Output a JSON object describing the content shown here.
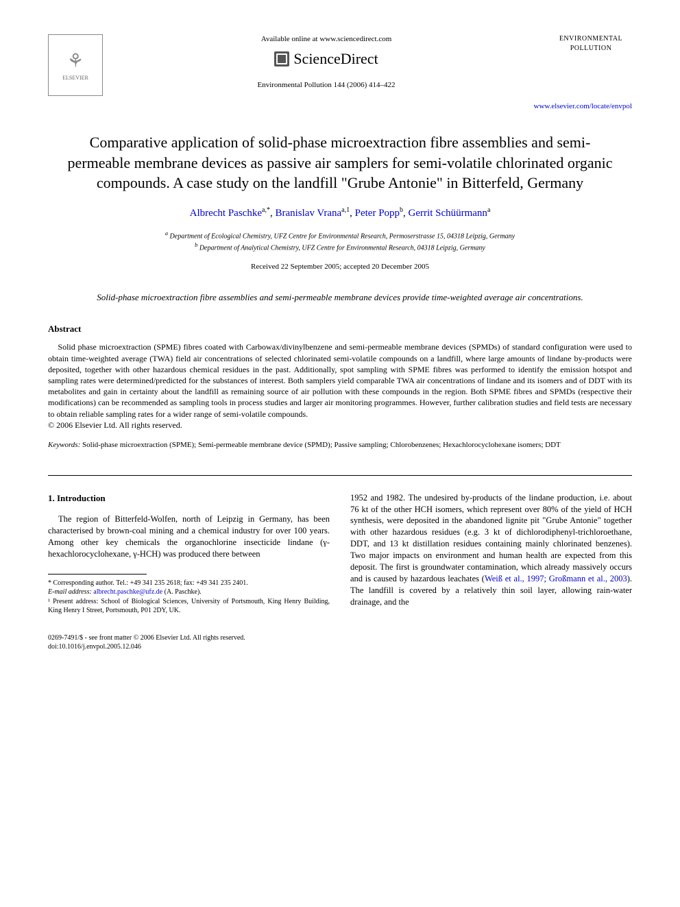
{
  "header": {
    "elsevier_label": "ELSEVIER",
    "available_online": "Available online at www.sciencedirect.com",
    "sciencedirect": "ScienceDirect",
    "journal_reference": "Environmental Pollution 144 (2006) 414–422",
    "journal_logo_line1": "ENVIRONMENTAL",
    "journal_logo_line2": "POLLUTION",
    "locate_url": "www.elsevier.com/locate/envpol"
  },
  "title": "Comparative application of solid-phase microextraction fibre assemblies and semi-permeable membrane devices as passive air samplers for semi-volatile chlorinated organic compounds. A case study on the landfill \"Grube Antonie\" in Bitterfeld, Germany",
  "authors": {
    "a1_name": "Albrecht Paschke",
    "a1_sup": "a,*",
    "a2_name": "Branislav Vrana",
    "a2_sup": "a,1",
    "a3_name": "Peter Popp",
    "a3_sup": "b",
    "a4_name": "Gerrit Schüürmann",
    "a4_sup": "a"
  },
  "affiliations": {
    "a": "Department of Ecological Chemistry, UFZ Centre for Environmental Research, Permoserstrasse 15, 04318 Leipzig, Germany",
    "b": "Department of Analytical Chemistry, UFZ Centre for Environmental Research, 04318 Leipzig, Germany"
  },
  "dates": "Received 22 September 2005; accepted 20 December 2005",
  "highlight": "Solid-phase microextraction fibre assemblies and semi-permeable membrane devices provide time-weighted average air concentrations.",
  "abstract": {
    "heading": "Abstract",
    "text": "Solid phase microextraction (SPME) fibres coated with Carbowax/divinylbenzene and semi-permeable membrane devices (SPMDs) of standard configuration were used to obtain time-weighted average (TWA) field air concentrations of selected chlorinated semi-volatile compounds on a landfill, where large amounts of lindane by-products were deposited, together with other hazardous chemical residues in the past. Additionally, spot sampling with SPME fibres was performed to identify the emission hotspot and sampling rates were determined/predicted for the substances of interest. Both samplers yield comparable TWA air concentrations of lindane and its isomers and of DDT with its metabolites and gain in certainty about the landfill as remaining source of air pollution with these compounds in the region. Both SPME fibres and SPMDs (respective their modifications) can be recommended as sampling tools in process studies and larger air monitoring programmes. However, further calibration studies and field tests are necessary to obtain reliable sampling rates for a wider range of semi-volatile compounds.",
    "copyright": "© 2006 Elsevier Ltd. All rights reserved."
  },
  "keywords": {
    "label": "Keywords:",
    "text": "Solid-phase microextraction (SPME); Semi-permeable membrane device (SPMD); Passive sampling; Chlorobenzenes; Hexachlorocyclohexane isomers; DDT"
  },
  "intro": {
    "heading": "1. Introduction",
    "col1": "The region of Bitterfeld-Wolfen, north of Leipzig in Germany, has been characterised by brown-coal mining and a chemical industry for over 100 years. Among other key chemicals the organochlorine insecticide lindane (γ-hexachlorocyclohexane, γ-HCH) was produced there between",
    "col2_part1": "1952 and 1982. The undesired by-products of the lindane production, i.e. about 76 kt of the other HCH isomers, which represent over 80% of the yield of HCH synthesis, were deposited in the abandoned lignite pit \"Grube Antonie\" together with other hazardous residues (e.g. 3 kt of dichlorodiphenyl-trichloroethane, DDT, and 13 kt distillation residues containing mainly chlorinated benzenes). Two major impacts on environment and human health are expected from this deposit. The first is groundwater contamination, which already massively occurs and is caused by hazardous leachates (",
    "col2_cite": "Weiß et al., 1997; Großmann et al., 2003",
    "col2_part2": "). The landfill is covered by a relatively thin soil layer, allowing rain-water drainage, and the"
  },
  "footnotes": {
    "corr_label": "* Corresponding author. Tel.: +49 341 235 2618; fax: +49 341 235 2401.",
    "email_label": "E-mail address:",
    "email": "albrecht.paschke@ufz.de",
    "email_attr": "(A. Paschke).",
    "present_addr": "¹ Present address: School of Biological Sciences, University of Portsmouth, King Henry Building, King Henry I Street, Portsmouth, P01 2DY, UK."
  },
  "footer": {
    "line1": "0269-7491/$ - see front matter © 2006 Elsevier Ltd. All rights reserved.",
    "line2": "doi:10.1016/j.envpol.2005.12.046"
  },
  "colors": {
    "text": "#000000",
    "link": "#0000cc",
    "background": "#ffffff",
    "logo_gray": "#888888"
  },
  "typography": {
    "title_fontsize": 22,
    "author_fontsize": 15,
    "body_fontsize": 12.5,
    "abstract_fontsize": 12,
    "footnote_fontsize": 10,
    "font_family": "Georgia / Times New Roman serif"
  }
}
